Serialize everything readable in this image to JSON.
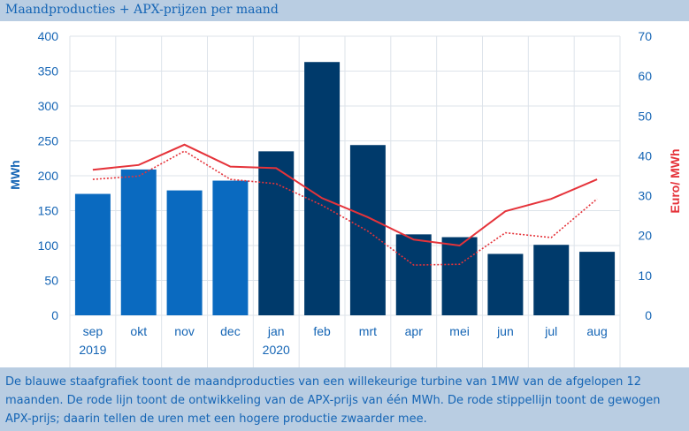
{
  "header": {
    "title": "Maandproducties + APX-prijzen per maand"
  },
  "caption": {
    "text": "De blauwe staafgrafiek toont de maandproducties van een willekeurige turbine van 1MW van de afgelopen 12 maanden. De rode lijn toont de ontwikkeling van de APX-prijs van één MWh. De rode stippellijn toont de gewogen APX-prijs; daarin tellen de uren met een hogere productie zwaarder mee."
  },
  "chart_data": {
    "type": "bar",
    "categories": [
      "sep",
      "okt",
      "nov",
      "dec",
      "jan",
      "feb",
      "mrt",
      "apr",
      "mei",
      "jun",
      "jul",
      "aug"
    ],
    "year_labels": [
      "2019",
      "",
      "",
      "",
      "2020",
      "",
      "",
      "",
      "",
      "",
      "",
      ""
    ],
    "ylabel": "MWh",
    "y2label": "Euro/ MWh",
    "ylim": [
      0,
      400
    ],
    "y2lim": [
      0,
      70
    ],
    "yticks": [
      "0",
      "50",
      "100",
      "150",
      "200",
      "250",
      "300",
      "350",
      "400"
    ],
    "y2ticks": [
      "0",
      "10",
      "20",
      "30",
      "40",
      "50",
      "60",
      "70"
    ],
    "grid": true,
    "series": [
      {
        "axis": "left",
        "kind": "bar",
        "values": [
          174,
          209,
          179,
          193,
          235,
          363,
          244,
          116,
          112,
          88,
          101,
          91
        ],
        "colors": [
          "#0a6ac0",
          "#0a6ac0",
          "#0a6ac0",
          "#0a6ac0",
          "#003a6b",
          "#003a6b",
          "#003a6b",
          "#003a6b",
          "#003a6b",
          "#003a6b",
          "#003a6b",
          "#003a6b"
        ]
      },
      {
        "axis": "right",
        "kind": "line",
        "style": "solid",
        "color": "#e5333a",
        "values": [
          36.5,
          37.7,
          42.8,
          37.3,
          36.9,
          29.4,
          24.6,
          19.0,
          17.5,
          26.1,
          29.2,
          34.1
        ]
      },
      {
        "axis": "right",
        "kind": "line",
        "style": "dotted",
        "color": "#e5333a",
        "values": [
          34.1,
          34.9,
          41.2,
          34.1,
          33.0,
          27.6,
          21.1,
          12.6,
          12.8,
          20.7,
          19.5,
          29.2
        ]
      }
    ],
    "colors": {
      "axis_left": "#1565b5",
      "axis_right": "#e5333a",
      "grid": "#dde3ea",
      "tick": "#1565b5"
    }
  }
}
